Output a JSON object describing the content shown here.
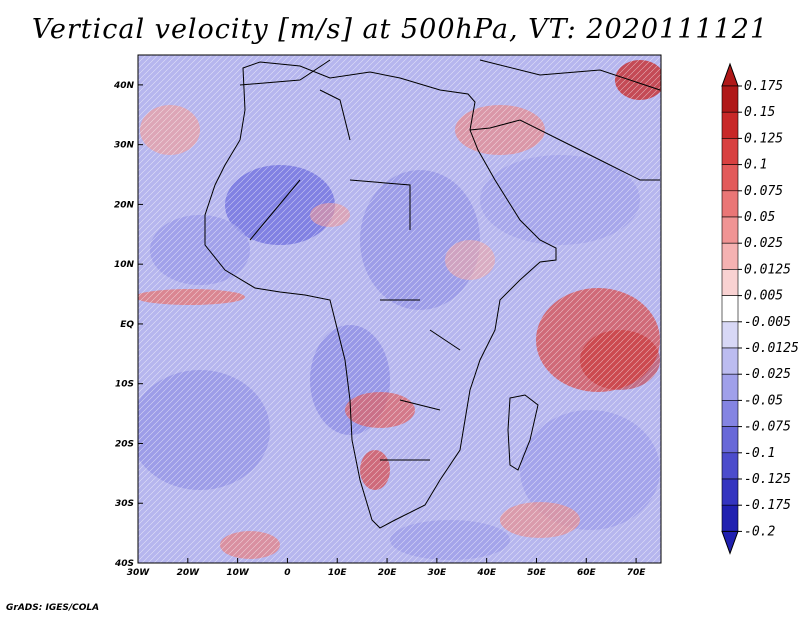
{
  "title": "Vertical velocity [m/s] at 500hPa, VT: 2020111121",
  "credit": "GrADS: IGES/COLA",
  "map": {
    "lat_range": [
      -40,
      45
    ],
    "lon_range": [
      -30,
      75
    ],
    "lat_labels": [
      "40N",
      "30N",
      "20N",
      "10N",
      "EQ",
      "10S",
      "20S",
      "30S",
      "40S"
    ],
    "lat_values": [
      40,
      30,
      20,
      10,
      0,
      -10,
      -20,
      -30,
      -40
    ],
    "lon_labels": [
      "30W",
      "20W",
      "10W",
      "0",
      "10E",
      "20E",
      "30E",
      "40E",
      "50E",
      "60E",
      "70E"
    ],
    "lon_values": [
      -30,
      -20,
      -10,
      0,
      10,
      20,
      30,
      40,
      50,
      60,
      70
    ]
  },
  "colorbar": {
    "labels": [
      "0.175",
      "0.15",
      "0.125",
      "0.1",
      "0.075",
      "0.05",
      "0.025",
      "0.0125",
      "0.005",
      "-0.005",
      "-0.0125",
      "-0.025",
      "-0.05",
      "-0.075",
      "-0.1",
      "-0.125",
      "-0.175",
      "-0.2"
    ],
    "colors": [
      "#b01818",
      "#c82828",
      "#d84040",
      "#e25a5a",
      "#ea7676",
      "#f09494",
      "#f5b2b2",
      "#f9d2d2",
      "#ffffff",
      "#d8d8f6",
      "#bcbcf0",
      "#a0a0ea",
      "#8484e2",
      "#6868d8",
      "#4c4ccc",
      "#3434c0",
      "#2020b0",
      "#2020b0"
    ]
  }
}
